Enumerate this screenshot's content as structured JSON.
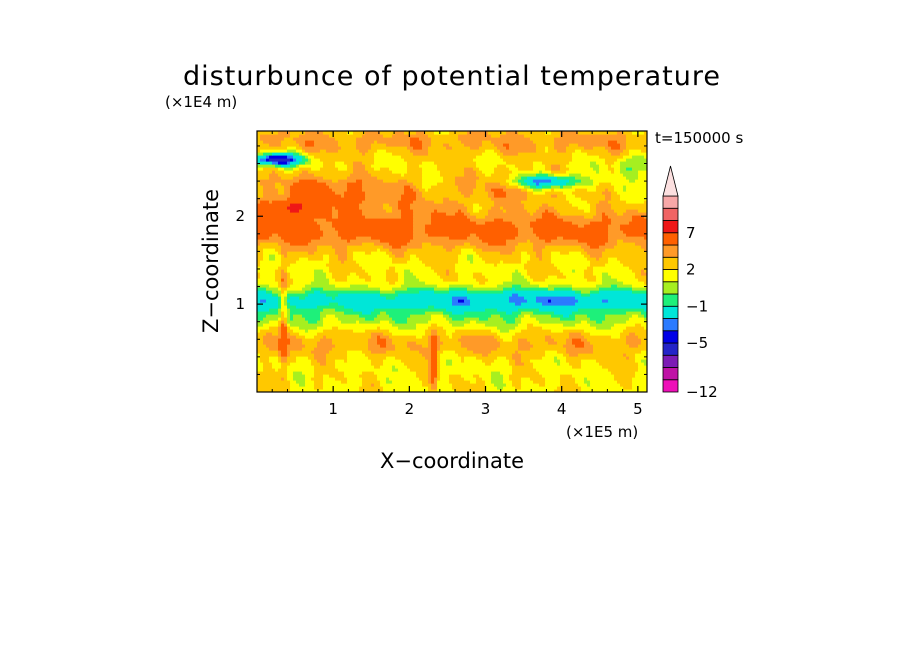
{
  "chart_data": {
    "type": "heatmap",
    "title": "disturbunce of potential temperature",
    "time_label": "t=150000 s",
    "xlabel": "X−coordinate",
    "ylabel": "Z−coordinate",
    "x_unit": "(×1E5 m)",
    "y_unit": "(×1E4 m)",
    "x_ticks": [
      "1",
      "2",
      "3",
      "4",
      "5"
    ],
    "x_tick_values": [
      1,
      2,
      3,
      4,
      5
    ],
    "y_ticks": [
      "1",
      "2"
    ],
    "y_tick_values": [
      1,
      2
    ],
    "xlim": [
      0,
      5.12
    ],
    "ylim": [
      0,
      2.97
    ],
    "grid": false,
    "colorbar": {
      "labels": [
        "7",
        "2",
        "−1",
        "−5",
        "−12"
      ],
      "label_values": [
        7,
        2,
        -1,
        -5,
        -12
      ],
      "levels": [
        -12,
        -10,
        -8,
        -6,
        -5,
        -4,
        -2,
        -1,
        0,
        1,
        2,
        3,
        5,
        7,
        9,
        11
      ],
      "colors": [
        "#ee10b8",
        "#bf12a6",
        "#7c1bb5",
        "#2424c8",
        "#0000e6",
        "#2b7bff",
        "#00e6d8",
        "#1ef07a",
        "#a6ef20",
        "#ffff00",
        "#ffc800",
        "#ff9a28",
        "#ff6000",
        "#ef1717",
        "#f06464",
        "#f8a8a8",
        "#fce0e0"
      ],
      "extend": "max"
    },
    "approx_field_bands": [
      {
        "z_range": [
          0.0,
          0.4
        ],
        "value_range": [
          -1,
          2
        ]
      },
      {
        "z_range": [
          0.4,
          0.8
        ],
        "value_range": [
          0,
          2
        ]
      },
      {
        "z_range": [
          0.8,
          1.3
        ],
        "value_range": [
          -6,
          -1
        ]
      },
      {
        "z_range": [
          1.3,
          1.6
        ],
        "value_range": [
          -1,
          1
        ]
      },
      {
        "z_range": [
          1.6,
          2.0
        ],
        "value_range": [
          1,
          4
        ]
      },
      {
        "z_range": [
          2.0,
          2.5
        ],
        "value_range": [
          3,
          6
        ]
      },
      {
        "z_range": [
          2.5,
          2.97
        ],
        "value_range": [
          -5,
          4
        ]
      }
    ]
  }
}
